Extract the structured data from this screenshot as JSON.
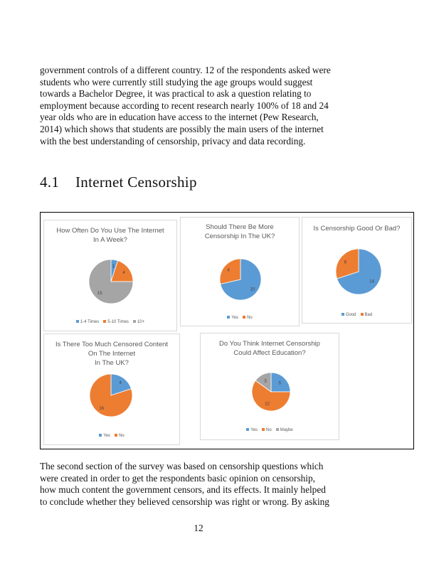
{
  "paragraph_top": [
    "government controls of a different country. 12 of the respondents asked were",
    "students who were currently still studying the age groups would suggest",
    "towards a Bachelor Degree, it was practical to ask a question relating to",
    "employment because according to recent research nearly 100% of 18 and 24",
    "year olds who are in education have access to the internet (Pew Research,",
    "2014) which shows that students are possibly the main users of the internet",
    "with the best understanding of censorship, privacy and data recording."
  ],
  "section": {
    "number": "4.1",
    "title": "Internet Censorship"
  },
  "colors": {
    "blue": "#5b9bd5",
    "orange": "#ed7d31",
    "gray": "#a5a5a5"
  },
  "chart_data": [
    {
      "type": "pie",
      "title_lines": [
        "How Often Do You Use The Internet",
        "In A Week?"
      ],
      "categories": [
        "1-4 Times",
        "5-10 Times",
        "10+"
      ],
      "values": [
        1,
        4,
        15
      ],
      "labels": [
        "1",
        "4",
        "15"
      ],
      "colors": [
        "#5b9bd5",
        "#ed7d31",
        "#a5a5a5"
      ],
      "legend": "bottom"
    },
    {
      "type": "pie",
      "title_lines": [
        "Should There Be More",
        "Censorship In The UK?"
      ],
      "categories": [
        "Yes",
        "No"
      ],
      "values": [
        10,
        4
      ],
      "labels": [
        "10",
        "4"
      ],
      "colors": [
        "#5b9bd5",
        "#ed7d31"
      ],
      "legend": "bottom"
    },
    {
      "type": "pie",
      "title_lines": [
        "Is Censorship Good Or Bad?"
      ],
      "categories": [
        "Good",
        "Bad"
      ],
      "values": [
        14,
        6
      ],
      "labels": [
        "14",
        "6"
      ],
      "colors": [
        "#5b9bd5",
        "#ed7d31"
      ],
      "legend": "bottom"
    },
    {
      "type": "pie",
      "title_lines": [
        "Is There Too Much Censored Content",
        "On The Internet",
        "In The UK?"
      ],
      "categories": [
        "Yes",
        "No"
      ],
      "values": [
        4,
        16
      ],
      "labels": [
        "4",
        "16"
      ],
      "colors": [
        "#5b9bd5",
        "#ed7d31"
      ],
      "legend": "bottom"
    },
    {
      "type": "pie",
      "title_lines": [
        "Do You Think Internet Censorship",
        "Could Affect Education?"
      ],
      "categories": [
        "Yes",
        "No",
        "Maybe"
      ],
      "values": [
        5,
        12,
        3
      ],
      "labels": [
        "5",
        "12",
        "3"
      ],
      "colors": [
        "#5b9bd5",
        "#ed7d31",
        "#a5a5a5"
      ],
      "legend": "bottom"
    }
  ],
  "paragraph_bottom": [
    "The second section of the survey was based on censorship questions which",
    "were created in order to get the respondents basic opinion on censorship,",
    "how much content the government censors, and its effects. It mainly helped",
    "to conclude whether they believed censorship was right or wrong. By asking"
  ],
  "page_number": "12"
}
